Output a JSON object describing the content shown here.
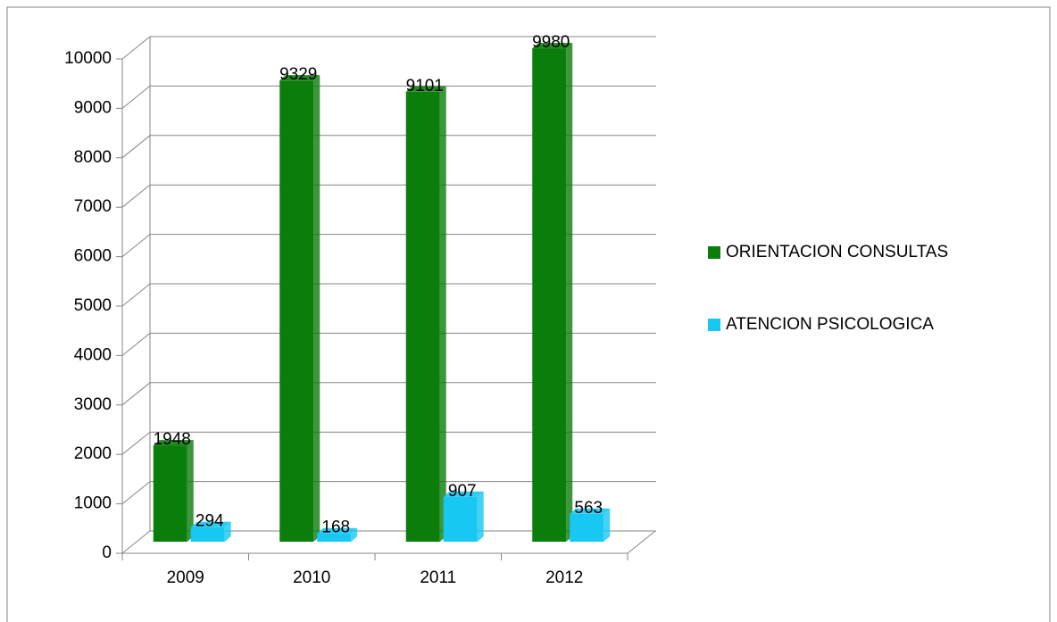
{
  "chart_data": {
    "type": "bar3d",
    "categories": [
      "2009",
      "2010",
      "2011",
      "2012"
    ],
    "series": [
      {
        "name": "ORIENTACION CONSULTAS",
        "color": "#0b7d0b",
        "values": [
          1948,
          9329,
          9101,
          9980
        ]
      },
      {
        "name": "ATENCION PSICOLOGICA",
        "color": "#16c8f2",
        "values": [
          294,
          168,
          907,
          563
        ]
      }
    ],
    "ylim": [
      0,
      10000
    ],
    "yticks": [
      0,
      1000,
      2000,
      3000,
      4000,
      5000,
      6000,
      7000,
      8000,
      9000,
      10000
    ],
    "grid": true,
    "legend": "right"
  }
}
